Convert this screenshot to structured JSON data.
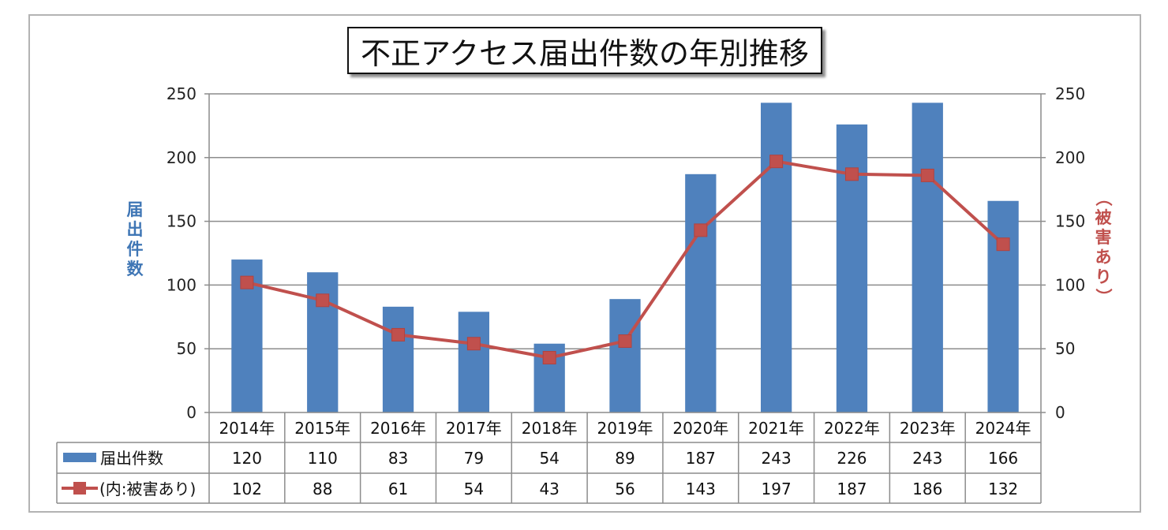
{
  "chart_data": {
    "type": "bar",
    "title": "不正アクセス届出件数の年別推移",
    "categories": [
      "2014年",
      "2015年",
      "2016年",
      "2017年",
      "2018年",
      "2019年",
      "2020年",
      "2021年",
      "2022年",
      "2023年",
      "2024年"
    ],
    "series": [
      {
        "name": "届出件数",
        "type": "bar",
        "axis": "left",
        "color": "#4f81bd",
        "values": [
          120,
          110,
          83,
          79,
          54,
          89,
          187,
          243,
          226,
          243,
          166
        ]
      },
      {
        "name": "(内:被害あり)",
        "type": "line",
        "axis": "right",
        "color": "#c0504d",
        "values": [
          102,
          88,
          61,
          54,
          43,
          56,
          143,
          197,
          187,
          186,
          132
        ]
      }
    ],
    "ylabel_left": "届出件数",
    "ylabel_right": "（被害あり）",
    "ylim": [
      0,
      250
    ],
    "yticks": [
      0,
      50,
      100,
      150,
      200,
      250
    ],
    "grid": true,
    "legend": "data-table"
  }
}
